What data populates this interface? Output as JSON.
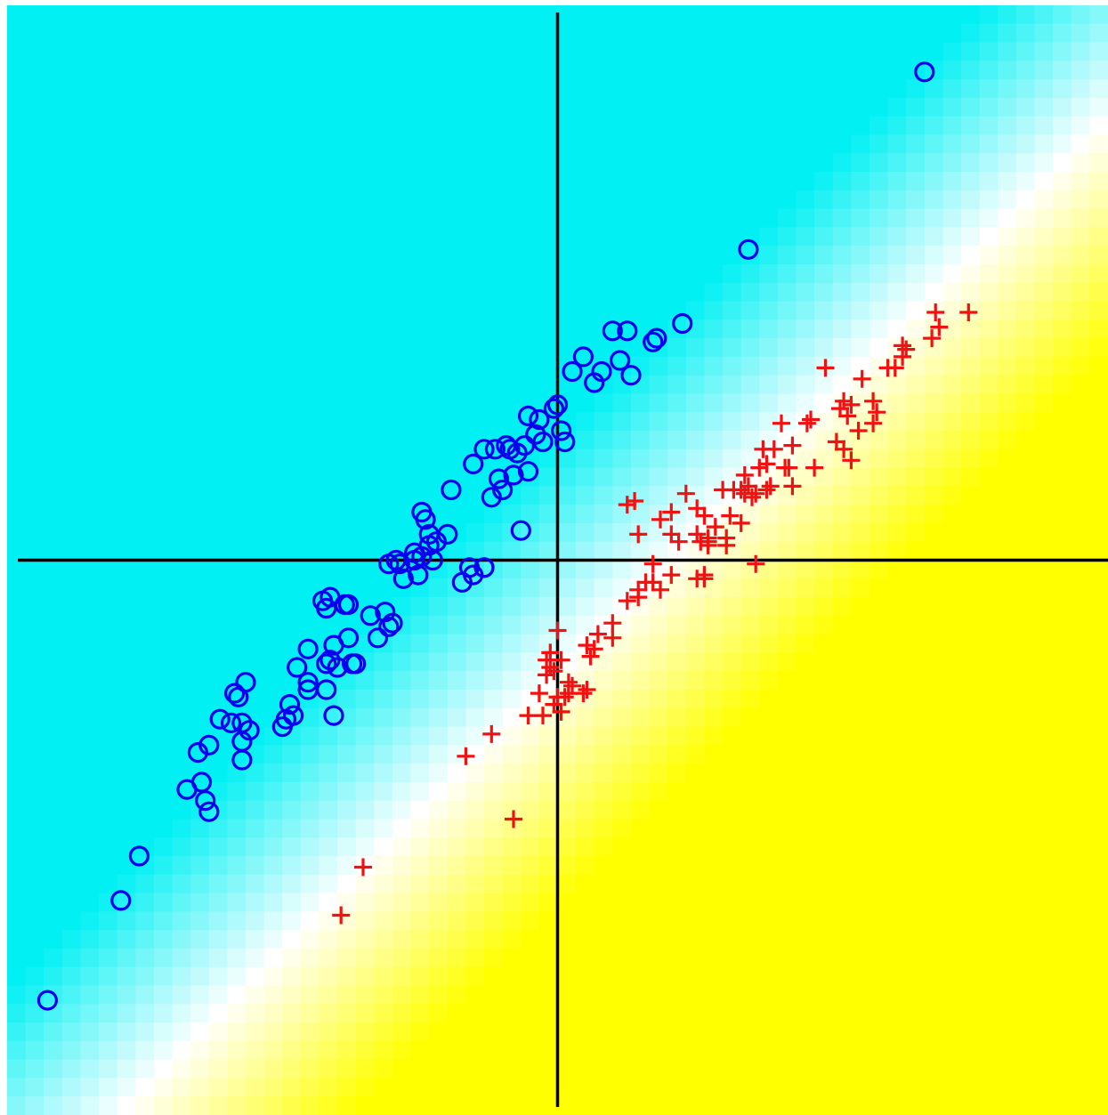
{
  "chart_data": {
    "type": "scatter",
    "title": "",
    "xlabel": "",
    "ylabel": "",
    "xlim": [
      -1.5,
      1.5
    ],
    "ylim": [
      -1.5,
      1.5
    ],
    "grid": false,
    "axes_through_origin": true,
    "background": {
      "type": "decision_region_heatmap",
      "colors": {
        "class_a": "#00f0f4",
        "boundary": "#ffffff",
        "class_b": "#ffff00"
      },
      "boundary_line": {
        "slope": 1.0,
        "intercept": -0.3
      },
      "transition_half_width": 0.45,
      "grid_cells": 60
    },
    "series": [
      {
        "marker": "circle",
        "color": "#0a00f0",
        "points": [
          [
            1.0,
            1.32
          ],
          [
            0.52,
            0.84
          ],
          [
            0.34,
            0.64
          ],
          [
            0.26,
            0.59
          ],
          [
            0.19,
            0.62
          ],
          [
            0.27,
            0.6
          ],
          [
            0.15,
            0.62
          ],
          [
            0.17,
            0.54
          ],
          [
            0.2,
            0.5
          ],
          [
            0.07,
            0.55
          ],
          [
            0.04,
            0.51
          ],
          [
            0.12,
            0.51
          ],
          [
            0.1,
            0.48
          ],
          [
            -0.01,
            0.41
          ],
          [
            0.0,
            0.42
          ],
          [
            0.01,
            0.35
          ],
          [
            0.02,
            0.32
          ],
          [
            -0.05,
            0.38
          ],
          [
            -0.04,
            0.32
          ],
          [
            -0.06,
            0.34
          ],
          [
            -0.08,
            0.39
          ],
          [
            -0.09,
            0.31
          ],
          [
            -0.11,
            0.29
          ],
          [
            -0.13,
            0.3
          ],
          [
            -0.14,
            0.31
          ],
          [
            -0.17,
            0.3
          ],
          [
            -0.2,
            0.3
          ],
          [
            -0.23,
            0.26
          ],
          [
            -0.08,
            0.24
          ],
          [
            -0.15,
            0.19
          ],
          [
            -0.16,
            0.22
          ],
          [
            -0.18,
            0.17
          ],
          [
            -0.29,
            0.19
          ],
          [
            -0.12,
            0.23
          ],
          [
            -0.1,
            0.08
          ],
          [
            -0.36,
            0.11
          ],
          [
            -0.37,
            0.13
          ],
          [
            -0.35,
            0.07
          ],
          [
            -0.33,
            0.05
          ],
          [
            -0.35,
            0.04
          ],
          [
            -0.3,
            0.07
          ],
          [
            -0.37,
            0.01
          ],
          [
            -0.39,
            0.02
          ],
          [
            -0.39,
            0.0
          ],
          [
            -0.34,
            0.0
          ],
          [
            -0.46,
            -0.01
          ],
          [
            -0.43,
            -0.01
          ],
          [
            -0.44,
            0.0
          ],
          [
            -0.38,
            -0.04
          ],
          [
            -0.42,
            -0.05
          ],
          [
            -0.24,
            -0.02
          ],
          [
            -0.2,
            -0.02
          ],
          [
            -0.23,
            -0.04
          ],
          [
            -0.26,
            -0.06
          ],
          [
            -0.2,
            -0.02
          ],
          [
            -0.64,
            -0.11
          ],
          [
            -0.62,
            -0.1
          ],
          [
            -0.63,
            -0.13
          ],
          [
            -0.58,
            -0.12
          ],
          [
            -0.57,
            -0.12
          ],
          [
            -0.51,
            -0.15
          ],
          [
            -0.47,
            -0.14
          ],
          [
            -0.45,
            -0.17
          ],
          [
            -0.46,
            -0.18
          ],
          [
            -0.49,
            -0.21
          ],
          [
            -0.61,
            -0.23
          ],
          [
            -0.57,
            -0.21
          ],
          [
            -0.68,
            -0.24
          ],
          [
            -0.62,
            -0.27
          ],
          [
            -0.63,
            -0.28
          ],
          [
            -0.6,
            -0.29
          ],
          [
            -0.55,
            -0.28
          ],
          [
            -0.56,
            -0.28
          ],
          [
            -0.71,
            -0.29
          ],
          [
            -0.68,
            -0.33
          ],
          [
            -0.68,
            -0.35
          ],
          [
            -0.63,
            -0.35
          ],
          [
            -0.85,
            -0.33
          ],
          [
            -0.87,
            -0.37
          ],
          [
            -0.73,
            -0.39
          ],
          [
            -0.74,
            -0.43
          ],
          [
            -0.75,
            -0.45
          ],
          [
            -0.72,
            -0.42
          ],
          [
            -0.61,
            -0.42
          ],
          [
            -0.84,
            -0.46
          ],
          [
            -0.86,
            -0.44
          ],
          [
            -0.89,
            -0.44
          ],
          [
            -0.92,
            -0.43
          ],
          [
            -0.95,
            -0.5
          ],
          [
            -0.86,
            -0.49
          ],
          [
            -0.86,
            -0.54
          ],
          [
            -0.98,
            -0.52
          ],
          [
            -1.01,
            -0.62
          ],
          [
            -0.97,
            -0.6
          ],
          [
            -0.96,
            -0.65
          ],
          [
            -0.95,
            -0.68
          ],
          [
            -1.14,
            -0.8
          ],
          [
            -1.19,
            -0.92
          ],
          [
            -1.39,
            -1.19
          ],
          [
            -0.88,
            -0.36
          ]
        ]
      },
      {
        "marker": "plus",
        "color": "#f21010",
        "points": [
          [
            1.12,
            0.67
          ],
          [
            1.03,
            0.67
          ],
          [
            1.04,
            0.63
          ],
          [
            1.02,
            0.6
          ],
          [
            0.95,
            0.57
          ],
          [
            0.94,
            0.58
          ],
          [
            0.94,
            0.55
          ],
          [
            0.92,
            0.52
          ],
          [
            0.9,
            0.52
          ],
          [
            0.73,
            0.52
          ],
          [
            0.83,
            0.49
          ],
          [
            0.78,
            0.43
          ],
          [
            0.77,
            0.41
          ],
          [
            0.8,
            0.42
          ],
          [
            0.86,
            0.43
          ],
          [
            0.79,
            0.39
          ],
          [
            0.87,
            0.4
          ],
          [
            0.69,
            0.38
          ],
          [
            0.68,
            0.37
          ],
          [
            0.61,
            0.37
          ],
          [
            0.76,
            0.32
          ],
          [
            0.82,
            0.35
          ],
          [
            0.86,
            0.37
          ],
          [
            0.64,
            0.31
          ],
          [
            0.59,
            0.3
          ],
          [
            0.56,
            0.3
          ],
          [
            0.78,
            0.3
          ],
          [
            0.8,
            0.27
          ],
          [
            0.7,
            0.25
          ],
          [
            0.57,
            0.26
          ],
          [
            0.63,
            0.25
          ],
          [
            0.62,
            0.25
          ],
          [
            0.55,
            0.25
          ],
          [
            0.51,
            0.23
          ],
          [
            0.48,
            0.19
          ],
          [
            0.52,
            0.2
          ],
          [
            0.58,
            0.2
          ],
          [
            0.64,
            0.2
          ],
          [
            0.57,
            0.19
          ],
          [
            0.53,
            0.17
          ],
          [
            0.51,
            0.18
          ],
          [
            0.5,
            0.19
          ],
          [
            0.54,
            0.18
          ],
          [
            0.45,
            0.19
          ],
          [
            0.35,
            0.18
          ],
          [
            0.21,
            0.16
          ],
          [
            0.19,
            0.15
          ],
          [
            0.47,
            0.12
          ],
          [
            0.5,
            0.1
          ],
          [
            0.4,
            0.12
          ],
          [
            0.38,
            0.14
          ],
          [
            0.31,
            0.13
          ],
          [
            0.28,
            0.11
          ],
          [
            0.22,
            0.07
          ],
          [
            0.43,
            0.09
          ],
          [
            0.46,
            0.06
          ],
          [
            0.41,
            0.06
          ],
          [
            0.41,
            0.05
          ],
          [
            0.38,
            0.07
          ],
          [
            0.31,
            0.07
          ],
          [
            0.33,
            0.05
          ],
          [
            0.41,
            0.04
          ],
          [
            0.46,
            0.04
          ],
          [
            0.39,
            0.05
          ],
          [
            0.54,
            -0.01
          ],
          [
            0.31,
            -0.04
          ],
          [
            0.4,
            -0.05
          ],
          [
            0.28,
            -0.08
          ],
          [
            0.22,
            -0.1
          ],
          [
            0.19,
            -0.11
          ],
          [
            0.4,
            -0.04
          ],
          [
            0.38,
            -0.05
          ],
          [
            0.26,
            -0.06
          ],
          [
            0.24,
            -0.06
          ],
          [
            0.26,
            -0.01
          ],
          [
            0.22,
            -0.08
          ],
          [
            0.15,
            -0.17
          ],
          [
            0.15,
            -0.21
          ],
          [
            0.08,
            -0.23
          ],
          [
            0.11,
            -0.2
          ],
          [
            0.1,
            -0.24
          ],
          [
            0.09,
            -0.26
          ],
          [
            0.04,
            -0.34
          ],
          [
            0.08,
            -0.35
          ],
          [
            0.03,
            -0.33
          ],
          [
            0.01,
            -0.27
          ],
          [
            0.02,
            -0.37
          ],
          [
            0.07,
            -0.36
          ],
          [
            -0.01,
            -0.39
          ],
          [
            0.03,
            -0.36
          ],
          [
            0.0,
            -0.37
          ],
          [
            0.01,
            -0.41
          ],
          [
            -0.04,
            -0.42
          ],
          [
            -0.05,
            -0.36
          ],
          [
            -0.03,
            -0.31
          ],
          [
            -0.01,
            -0.3
          ],
          [
            -0.02,
            -0.29
          ],
          [
            -0.03,
            -0.27
          ],
          [
            -0.02,
            -0.25
          ],
          [
            -0.08,
            -0.42
          ],
          [
            -0.18,
            -0.47
          ],
          [
            -0.25,
            -0.53
          ],
          [
            -0.12,
            -0.7
          ],
          [
            -0.53,
            -0.83
          ],
          [
            -0.59,
            -0.96
          ],
          [
            0.0,
            -0.19
          ]
        ]
      }
    ]
  }
}
